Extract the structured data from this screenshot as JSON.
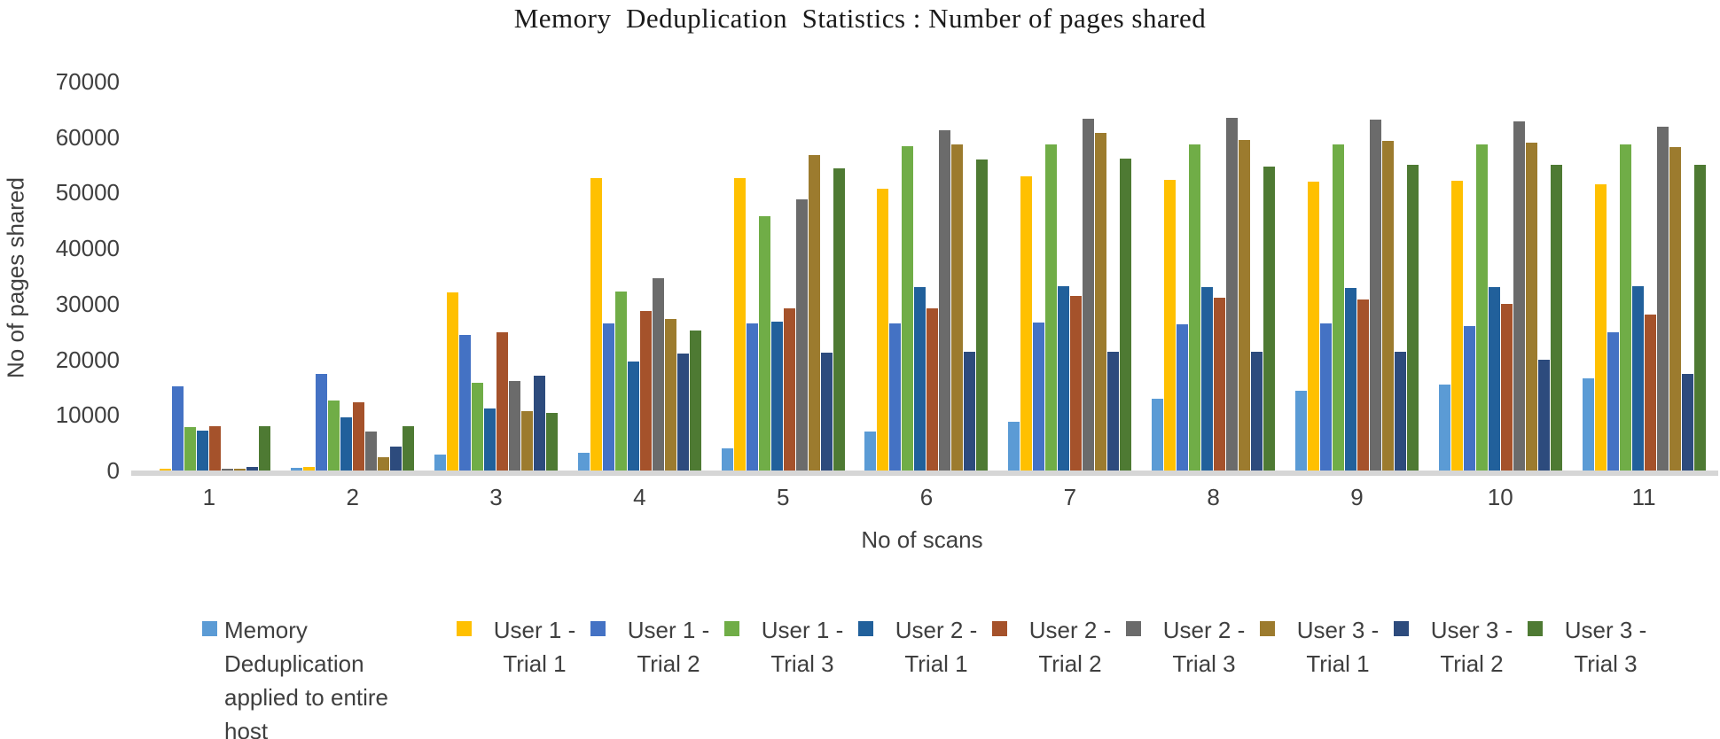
{
  "title": "Memory  Deduplication  Statistics : Number of pages shared",
  "chart_data": {
    "type": "bar",
    "title": "Memory  Deduplication  Statistics : Number of pages shared",
    "xlabel": "No of scans",
    "ylabel": "No of pages shared",
    "ylim": [
      0,
      70000
    ],
    "ytick_interval": 10000,
    "ytick_labels": [
      "0",
      "10000",
      "20000",
      "30000",
      "40000",
      "50000",
      "60000",
      "70000"
    ],
    "grid": false,
    "legend_position": "bottom",
    "categories": [
      "1",
      "2",
      "3",
      "4",
      "5",
      "6",
      "7",
      "8",
      "9",
      "10",
      "11"
    ],
    "series": [
      {
        "name": "Memory Deduplication applied to entire host",
        "color": "#5b9bd5",
        "values": [
          100,
          600,
          3100,
          3400,
          4200,
          7100,
          8900,
          13000,
          14500,
          15600,
          16700
        ]
      },
      {
        "name": "User 1 - Trial 1",
        "color": "#ffc000",
        "values": [
          500,
          800,
          32200,
          52700,
          52700,
          50800,
          53100,
          52400,
          52100,
          52300,
          51700
        ]
      },
      {
        "name": "User 1 - Trial 2",
        "color": "#4472c4",
        "values": [
          15300,
          17600,
          24500,
          26600,
          26700,
          26600,
          26800,
          26500,
          26600,
          26100,
          25000
        ]
      },
      {
        "name": "User 1 - Trial 3",
        "color": "#70ad47",
        "values": [
          7900,
          12800,
          15900,
          32400,
          46000,
          58500,
          58800,
          58800,
          58800,
          58800,
          58800
        ]
      },
      {
        "name": "User 2 - Trial 1",
        "color": "#21609b",
        "values": [
          7400,
          9800,
          11400,
          19800,
          27000,
          33100,
          33300,
          33100,
          33000,
          33200,
          33300
        ]
      },
      {
        "name": "User 2 - Trial 2",
        "color": "#a5522b",
        "values": [
          8100,
          12400,
          25100,
          28800,
          29400,
          29400,
          31500,
          31300,
          30900,
          30100,
          28200
        ]
      },
      {
        "name": "User 2 - Trial 3",
        "color": "#6b6b6b",
        "values": [
          500,
          7200,
          16200,
          34800,
          49000,
          61400,
          63500,
          63600,
          63300,
          63000,
          62100
        ]
      },
      {
        "name": "User 3 - Trial 1",
        "color": "#9c7b2e",
        "values": [
          500,
          2600,
          10800,
          27500,
          57000,
          58900,
          60900,
          59600,
          59500,
          59100,
          58300
        ]
      },
      {
        "name": "User 3 - Trial 2",
        "color": "#2d4b7d",
        "values": [
          800,
          4500,
          17200,
          21200,
          21400,
          21500,
          21600,
          21600,
          21500,
          20100,
          17600
        ]
      },
      {
        "name": "User 3 - Trial 3",
        "color": "#4e7a33",
        "values": [
          8100,
          8100,
          10600,
          25300,
          54500,
          56100,
          56300,
          54800,
          55200,
          55100,
          55100
        ]
      }
    ]
  }
}
